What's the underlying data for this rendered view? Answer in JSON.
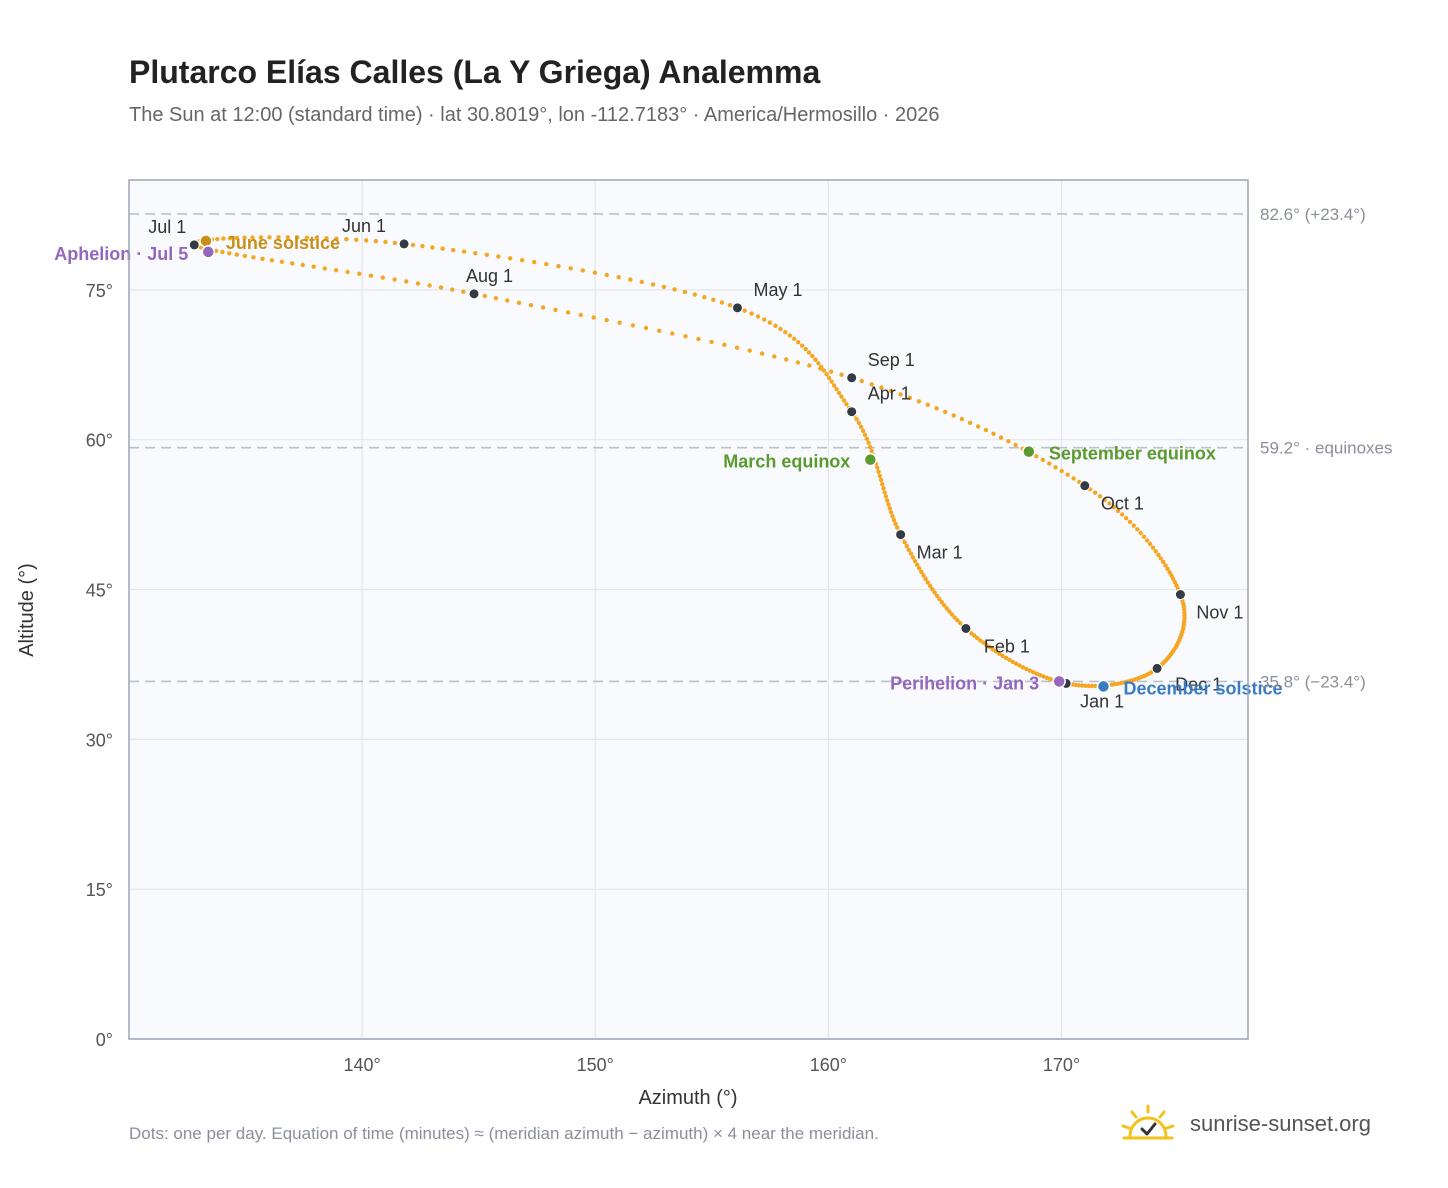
{
  "header": {
    "title": "Plutarco Elías Calles (La Y Griega) Analemma",
    "subtitle": "The Sun at 12:00 (standard time) · lat 30.8019°, lon -112.7183° · America/Hermosillo · 2026"
  },
  "footer": {
    "note": "Dots: one per day. Equation of time (minutes) ≈ (meridian azimuth − azimuth) × 4 near the meridian.",
    "brand": "sunrise-sunset.org"
  },
  "colors": {
    "curve": "#f5a623",
    "month_marker": "#333a44",
    "solstice_june": "#c8901a",
    "solstice_december": "#3a7cc4",
    "equinox": "#5a9a2e",
    "apsis": "#9467bd",
    "reference_line": "#b8c2cc",
    "grid": "#e3e7ec",
    "plot_bg": "#f8fafd",
    "frame": "#9aa5b4"
  },
  "chart_data": {
    "type": "scatter",
    "title": "Plutarco Elías Calles (La Y Griega) Analemma",
    "xlabel": "Azimuth (°)",
    "ylabel": "Altitude (°)",
    "xlim": [
      130.0,
      178.0
    ],
    "ylim": [
      0,
      86
    ],
    "xticks": [
      140,
      150,
      160,
      170
    ],
    "xtick_labels": [
      "140°",
      "150°",
      "160°",
      "170°"
    ],
    "yticks": [
      0,
      15,
      30,
      45,
      60,
      75
    ],
    "ytick_labels": [
      "0°",
      "15°",
      "30°",
      "45°",
      "60°",
      "75°"
    ],
    "grid": true,
    "series": [
      {
        "marker": "dot, one per day",
        "points": [
          {
            "date": "Jan 1",
            "azimuth": 170.2,
            "altitude": 35.6
          },
          {
            "date": "Feb 1",
            "azimuth": 165.9,
            "altitude": 41.1
          },
          {
            "date": "Mar 1",
            "azimuth": 163.1,
            "altitude": 50.5
          },
          {
            "date": "Apr 1",
            "azimuth": 161.0,
            "altitude": 62.8
          },
          {
            "date": "May 1",
            "azimuth": 156.1,
            "altitude": 73.2
          },
          {
            "date": "Jun 1",
            "azimuth": 141.8,
            "altitude": 79.6
          },
          {
            "date": "Jul 1",
            "azimuth": 132.8,
            "altitude": 79.5
          },
          {
            "date": "Aug 1",
            "azimuth": 144.8,
            "altitude": 74.6
          },
          {
            "date": "Sep 1",
            "azimuth": 161.0,
            "altitude": 66.2
          },
          {
            "date": "Oct 1",
            "azimuth": 171.0,
            "altitude": 55.4
          },
          {
            "date": "Nov 1",
            "azimuth": 175.1,
            "altitude": 44.5
          },
          {
            "date": "Dec 1",
            "azimuth": 174.1,
            "altitude": 37.1
          }
        ]
      }
    ],
    "month_labels": [
      "Jan 1",
      "Feb 1",
      "Mar 1",
      "Apr 1",
      "May 1",
      "Jun 1",
      "Jul 1",
      "Aug 1",
      "Sep 1",
      "Oct 1",
      "Nov 1",
      "Dec 1"
    ],
    "events": [
      {
        "label": "June solstice",
        "kind": "solstice_june",
        "azimuth": 133.3,
        "altitude": 79.9
      },
      {
        "label": "December solstice",
        "kind": "solstice_december",
        "azimuth": 171.8,
        "altitude": 35.3
      },
      {
        "label": "March equinox",
        "kind": "equinox",
        "azimuth": 161.8,
        "altitude": 58.0
      },
      {
        "label": "September equinox",
        "kind": "equinox",
        "azimuth": 168.6,
        "altitude": 58.8
      },
      {
        "label": "Aphelion · Jul 5",
        "kind": "apsis",
        "azimuth": 133.4,
        "altitude": 78.8
      },
      {
        "label": "Perihelion · Jan 3",
        "kind": "apsis",
        "azimuth": 169.9,
        "altitude": 35.8
      }
    ],
    "reference_lines": [
      {
        "altitude": 82.6,
        "label": "82.6° (+23.4°)"
      },
      {
        "altitude": 59.2,
        "label": "59.2° · equinoxes"
      },
      {
        "altitude": 35.8,
        "label": "35.8° (−23.4°)"
      }
    ]
  }
}
